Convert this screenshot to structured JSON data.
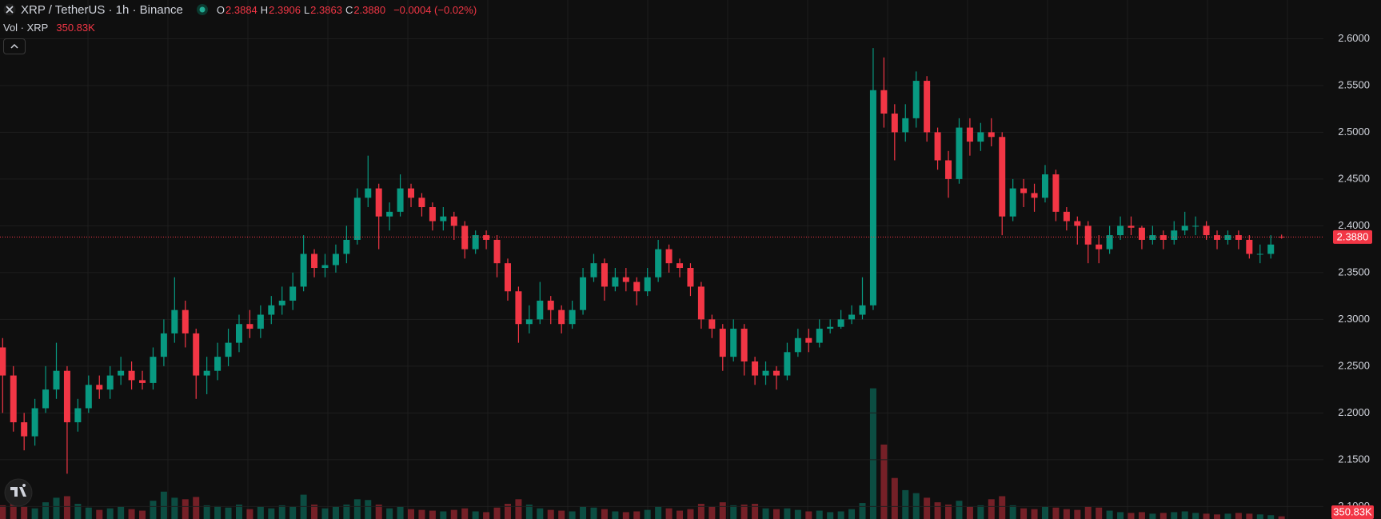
{
  "chart_data": {
    "type": "candlestick",
    "title": "XRP / TetherUS · 1h · Binance",
    "ohlc": [
      {
        "key": "O",
        "value": 2.3884
      },
      {
        "key": "H",
        "value": 2.3906
      },
      {
        "key": "L",
        "value": 2.3863
      },
      {
        "key": "C",
        "value": 2.388,
        "label": "2.3880"
      }
    ],
    "change": "−0.0004 (−0.02%)",
    "volume_title": "Vol · XRP",
    "last_volume": {
      "value": 350830,
      "label": "350.83K"
    },
    "last_price": {
      "value": 2.388,
      "label": "2.3880"
    },
    "up_color": "#089981",
    "down_color": "#f23645",
    "grid": true,
    "ylim": [
      2.0866,
      2.6414
    ],
    "yticks": [
      {
        "value": 2.1,
        "label": "2.1000"
      },
      {
        "value": 2.15,
        "label": "2.1500"
      },
      {
        "value": 2.2,
        "label": "2.2000"
      },
      {
        "value": 2.25,
        "label": "2.2500"
      },
      {
        "value": 2.3,
        "label": "2.3000"
      },
      {
        "value": 2.35,
        "label": "2.3500"
      },
      {
        "value": 2.4,
        "label": "2.4000"
      },
      {
        "value": 2.45,
        "label": "2.4500"
      },
      {
        "value": 2.5,
        "label": "2.5000"
      },
      {
        "value": 2.55,
        "label": "2.5500"
      },
      {
        "value": 2.6,
        "label": "2.6000"
      }
    ],
    "volume_lim": [
      0,
      20000000
    ],
    "open": [
      2.27,
      2.24,
      2.19,
      2.175,
      2.205,
      2.225,
      2.245,
      2.19,
      2.205,
      2.23,
      2.225,
      2.24,
      2.245,
      2.235,
      2.232,
      2.26,
      2.285,
      2.31,
      2.285,
      2.24,
      2.245,
      2.26,
      2.275,
      2.295,
      2.29,
      2.305,
      2.315,
      2.32,
      2.335,
      2.37,
      2.355,
      2.358,
      2.37,
      2.385,
      2.43,
      2.44,
      2.41,
      2.415,
      2.44,
      2.43,
      2.42,
      2.405,
      2.41,
      2.4,
      2.375,
      2.39,
      2.385,
      2.36,
      2.33,
      2.295,
      2.3,
      2.32,
      2.31,
      2.295,
      2.31,
      2.345,
      2.36,
      2.335,
      2.345,
      2.34,
      2.33,
      2.345,
      2.375,
      2.36,
      2.355,
      2.335,
      2.3,
      2.29,
      2.26,
      2.29,
      2.255,
      2.24,
      2.245,
      2.24,
      2.265,
      2.28,
      2.275,
      2.29,
      2.292,
      2.3,
      2.305,
      2.315,
      2.545,
      2.52,
      2.5,
      2.515,
      2.555,
      2.5,
      2.47,
      2.45,
      2.505,
      2.49,
      2.5,
      2.495,
      2.41,
      2.44,
      2.435,
      2.43,
      2.455,
      2.415,
      2.405,
      2.4,
      2.38,
      2.375,
      2.39,
      2.4,
      2.398,
      2.385,
      2.39,
      2.385,
      2.395,
      2.4,
      2.4,
      2.39,
      2.385,
      2.39,
      2.385,
      2.37,
      2.37,
      2.3884
    ],
    "high": [
      2.28,
      2.25,
      2.2,
      2.215,
      2.25,
      2.275,
      2.25,
      2.215,
      2.24,
      2.24,
      2.25,
      2.26,
      2.255,
      2.245,
      2.27,
      2.3,
      2.345,
      2.32,
      2.29,
      2.26,
      2.275,
      2.29,
      2.305,
      2.31,
      2.315,
      2.325,
      2.335,
      2.35,
      2.39,
      2.375,
      2.37,
      2.38,
      2.4,
      2.44,
      2.475,
      2.445,
      2.425,
      2.455,
      2.445,
      2.435,
      2.425,
      2.42,
      2.415,
      2.405,
      2.395,
      2.395,
      2.39,
      2.365,
      2.335,
      2.315,
      2.34,
      2.325,
      2.315,
      2.32,
      2.355,
      2.37,
      2.365,
      2.355,
      2.355,
      2.345,
      2.355,
      2.385,
      2.38,
      2.365,
      2.36,
      2.34,
      2.305,
      2.295,
      2.3,
      2.295,
      2.26,
      2.255,
      2.25,
      2.275,
      2.29,
      2.29,
      2.3,
      2.3,
      2.31,
      2.315,
      2.345,
      2.59,
      2.58,
      2.53,
      2.53,
      2.565,
      2.56,
      2.505,
      2.48,
      2.515,
      2.515,
      2.51,
      2.515,
      2.5,
      2.45,
      2.45,
      2.445,
      2.465,
      2.46,
      2.42,
      2.41,
      2.405,
      2.39,
      2.4,
      2.41,
      2.41,
      2.4,
      2.4,
      2.395,
      2.405,
      2.415,
      2.41,
      2.405,
      2.395,
      2.395,
      2.395,
      2.39,
      2.38,
      2.39,
      2.3906
    ],
    "low": [
      2.2,
      2.18,
      2.16,
      2.165,
      2.2,
      2.215,
      2.135,
      2.18,
      2.2,
      2.215,
      2.215,
      2.23,
      2.225,
      2.225,
      2.225,
      2.25,
      2.275,
      2.27,
      2.215,
      2.22,
      2.235,
      2.25,
      2.265,
      2.28,
      2.28,
      2.295,
      2.305,
      2.31,
      2.33,
      2.345,
      2.345,
      2.35,
      2.36,
      2.38,
      2.42,
      2.375,
      2.395,
      2.41,
      2.42,
      2.41,
      2.395,
      2.395,
      2.385,
      2.365,
      2.37,
      2.375,
      2.345,
      2.32,
      2.275,
      2.285,
      2.295,
      2.295,
      2.285,
      2.29,
      2.305,
      2.34,
      2.32,
      2.33,
      2.33,
      2.315,
      2.325,
      2.34,
      2.35,
      2.345,
      2.325,
      2.29,
      2.28,
      2.245,
      2.255,
      2.24,
      2.23,
      2.23,
      2.225,
      2.235,
      2.26,
      2.265,
      2.27,
      2.285,
      2.29,
      2.295,
      2.3,
      2.31,
      2.505,
      2.47,
      2.49,
      2.505,
      2.49,
      2.46,
      2.43,
      2.445,
      2.475,
      2.48,
      2.485,
      2.39,
      2.405,
      2.42,
      2.415,
      2.425,
      2.405,
      2.395,
      2.38,
      2.36,
      2.36,
      2.37,
      2.385,
      2.39,
      2.375,
      2.38,
      2.375,
      2.38,
      2.39,
      2.39,
      2.385,
      2.375,
      2.38,
      2.375,
      2.365,
      2.36,
      2.365,
      2.3863
    ],
    "close": [
      2.24,
      2.19,
      2.175,
      2.205,
      2.225,
      2.245,
      2.19,
      2.205,
      2.23,
      2.225,
      2.24,
      2.245,
      2.235,
      2.232,
      2.26,
      2.285,
      2.31,
      2.285,
      2.24,
      2.245,
      2.26,
      2.275,
      2.295,
      2.29,
      2.305,
      2.315,
      2.32,
      2.335,
      2.37,
      2.355,
      2.358,
      2.37,
      2.385,
      2.43,
      2.44,
      2.41,
      2.415,
      2.44,
      2.43,
      2.42,
      2.405,
      2.41,
      2.4,
      2.375,
      2.39,
      2.385,
      2.36,
      2.33,
      2.295,
      2.3,
      2.32,
      2.31,
      2.295,
      2.31,
      2.345,
      2.36,
      2.335,
      2.345,
      2.34,
      2.33,
      2.345,
      2.375,
      2.36,
      2.355,
      2.335,
      2.3,
      2.29,
      2.26,
      2.29,
      2.255,
      2.24,
      2.245,
      2.24,
      2.265,
      2.28,
      2.275,
      2.29,
      2.292,
      2.3,
      2.305,
      2.315,
      2.545,
      2.52,
      2.5,
      2.515,
      2.555,
      2.5,
      2.47,
      2.45,
      2.505,
      2.49,
      2.5,
      2.495,
      2.41,
      2.44,
      2.435,
      2.43,
      2.455,
      2.415,
      2.405,
      2.4,
      2.38,
      2.375,
      2.39,
      2.4,
      2.398,
      2.385,
      2.39,
      2.385,
      2.395,
      2.4,
      2.4,
      2.39,
      2.385,
      2.39,
      2.385,
      2.37,
      2.37,
      2.38,
      2.388
    ],
    "volume": [
      1800000,
      2500000,
      1600000,
      1400000,
      2200000,
      2800000,
      3000000,
      2000000,
      1500000,
      1200000,
      1400000,
      1600000,
      1300000,
      1100000,
      2400000,
      3600000,
      2800000,
      2600000,
      2900000,
      1800000,
      1700000,
      1500000,
      1900000,
      1300000,
      1600000,
      1400000,
      1800000,
      1600000,
      3200000,
      1900000,
      1400000,
      1600000,
      1900000,
      2600000,
      2500000,
      1900000,
      1400000,
      1600000,
      1300000,
      1200000,
      1100000,
      1000000,
      1200000,
      1400000,
      1000000,
      900000,
      1500000,
      2000000,
      2600000,
      1900000,
      1400000,
      1200000,
      1100000,
      1000000,
      1600000,
      1500000,
      1300000,
      1000000,
      900000,
      1000000,
      1200000,
      1600000,
      1400000,
      1100000,
      1300000,
      2000000,
      1600000,
      2200000,
      1800000,
      1900000,
      2000000,
      1400000,
      1300000,
      1400000,
      1200000,
      1000000,
      1100000,
      900000,
      1000000,
      1300000,
      2100000,
      17200000,
      9800000,
      5400000,
      3800000,
      3400000,
      2800000,
      2200000,
      1900000,
      2400000,
      1600000,
      1800000,
      2600000,
      3000000,
      1800000,
      1400000,
      1300000,
      1600000,
      1500000,
      1300000,
      1200000,
      1600000,
      1500000,
      1100000,
      900000,
      800000,
      900000,
      700000,
      800000,
      900000,
      1000000,
      800000,
      700000,
      600000,
      700000,
      800000,
      700000,
      600000,
      500000,
      350830
    ]
  }
}
